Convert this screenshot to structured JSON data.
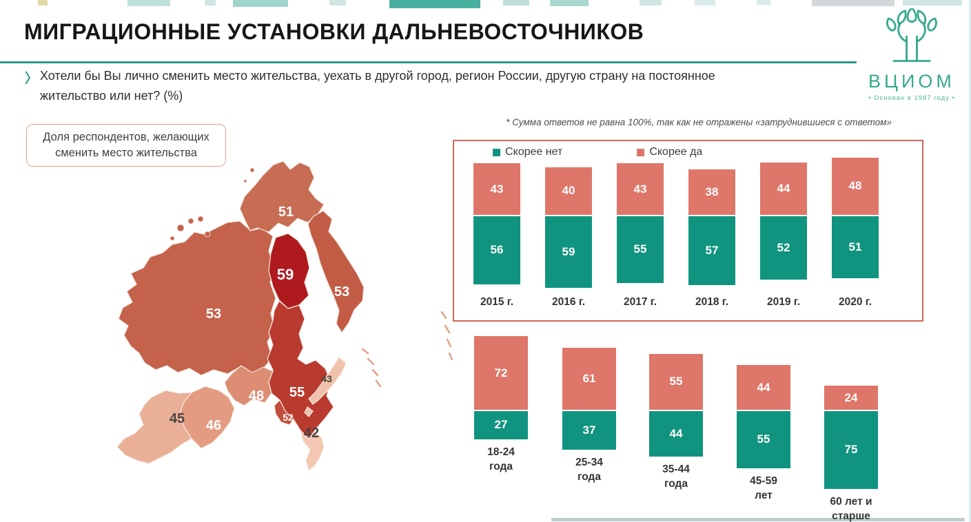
{
  "header": {
    "title": "МИГРАЦИОННЫЕ УСТАНОВКИ ДАЛЬНЕВОСТОЧНИКОВ"
  },
  "question": {
    "bullet": "〉",
    "line1": "Хотели бы Вы лично сменить место жительства, уехать в другой город, регион России, другую страну на постоянное",
    "line2": "жительство или нет? (%)"
  },
  "logo": {
    "name": "ВЦИОМ",
    "tagline": "• Основан в 1987 году •",
    "color": "#35a98c"
  },
  "note": "* Сумма ответов не равна 100%, так как не отражены «затруднившиеся с ответом»",
  "map_panel": {
    "caption_line1": "Доля респондентов, желающих",
    "caption_line2": "сменить место жительства",
    "regions": {
      "chukotka": {
        "value": "51",
        "fill": "#c66d53",
        "text_color": "#ffffff"
      },
      "magadan": {
        "value": "59",
        "fill": "#af1a1f",
        "text_color": "#ffffff"
      },
      "kamchatka": {
        "value": "53",
        "fill": "#c25c45",
        "text_color": "#ffffff"
      },
      "yakutia": {
        "value": "53",
        "fill": "#c4624b",
        "text_color": "#ffffff"
      },
      "khabarovsk": {
        "value": "55",
        "fill": "#b93a2e",
        "text_color": "#ffffff"
      },
      "amur": {
        "value": "48",
        "fill": "#dc8d73",
        "text_color": "#ffffff"
      },
      "jewish": {
        "value": "52",
        "fill": "#c24d3c",
        "text_color": "#ffffff"
      },
      "primorye": {
        "value": "42",
        "fill": "#f3c7b2",
        "text_color": "#4a4440"
      },
      "sakhalin": {
        "value": "43",
        "fill": "#f0c1ab",
        "text_color": "#4a4440"
      },
      "buryatia": {
        "value": "46",
        "fill": "#e39b81",
        "text_color": "#ffffff"
      },
      "zabaykalsky": {
        "value": "45",
        "fill": "#e9af97",
        "text_color": "#4a4440"
      }
    }
  },
  "chart_data": [
    {
      "type": "bar",
      "subtype": "diverging_stacked",
      "categories": [
        "2015 г.",
        "2016 г.",
        "2017 г.",
        "2018 г.",
        "2019 г.",
        "2020 г."
      ],
      "series": [
        {
          "name": "Скорее да",
          "color": "#de7669",
          "direction": "up",
          "values": [
            43,
            40,
            43,
            38,
            44,
            48
          ]
        },
        {
          "name": "Скорее нет",
          "color": "#10947f",
          "direction": "down",
          "values": [
            56,
            59,
            55,
            57,
            52,
            51
          ]
        }
      ],
      "legend_position": "top-left",
      "frame_color": "#cf685c",
      "value_labels": "inside"
    },
    {
      "type": "bar",
      "subtype": "diverging_stacked",
      "categories": [
        "18-24 года",
        "25-34 года",
        "35-44 года",
        "45-59 лет",
        "60 лет и старше"
      ],
      "categories_lines": [
        [
          "18-24",
          "года"
        ],
        [
          "25-34",
          "года"
        ],
        [
          "35-44",
          "года"
        ],
        [
          "45-59",
          "лет"
        ],
        [
          "60 лет и",
          "старше"
        ]
      ],
      "series": [
        {
          "name": "Скорее да",
          "color": "#de7669",
          "direction": "up",
          "values": [
            72,
            61,
            55,
            44,
            24
          ]
        },
        {
          "name": "Скорее нет",
          "color": "#10947f",
          "direction": "down",
          "values": [
            27,
            37,
            44,
            55,
            75
          ]
        }
      ],
      "value_labels": "inside"
    },
    {
      "type": "map",
      "caption": "Доля респондентов, желающих сменить место жительства",
      "region_values": [
        51,
        59,
        53,
        53,
        55,
        48,
        52,
        46,
        45,
        43,
        42
      ]
    }
  ]
}
